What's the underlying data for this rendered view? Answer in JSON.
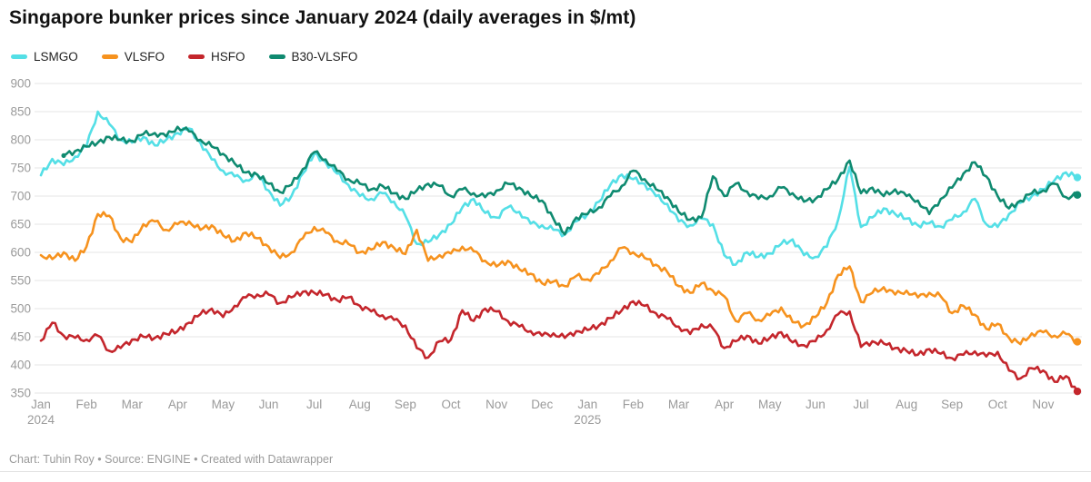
{
  "title": "Singapore bunker prices since January 2024 (daily averages in $/mt)",
  "footer": "Chart: Tuhin Roy • Source: ENGINE • Created with Datawrapper",
  "colors": {
    "lsmgo": "#54dfe6",
    "vlsfo": "#f6921e",
    "hsfo": "#c4262c",
    "b30_vlsfo": "#0f8a70",
    "grid": "#e4e4e4",
    "axis_text": "#9a9a9a",
    "title_text": "#111111"
  },
  "legend": [
    {
      "label": "LSMGO",
      "color": "#54dfe6"
    },
    {
      "label": "VLSFO",
      "color": "#f6921e"
    },
    {
      "label": "HSFO",
      "color": "#c4262c"
    },
    {
      "label": "B30-VLSFO",
      "color": "#0f8a70"
    }
  ],
  "chart_data": {
    "type": "line",
    "title": "Singapore bunker prices since January 2024 (daily averages in $/mt)",
    "ylabel": "$/mt",
    "xlabel": "",
    "ylim": [
      350,
      900
    ],
    "y_ticks": [
      900,
      850,
      800,
      750,
      700,
      650,
      600,
      550,
      500,
      450,
      400,
      350
    ],
    "grid": "horizontal",
    "legend_position": "top-left",
    "points_per_month": 4,
    "x_months": [
      {
        "label": "Jan",
        "year": "2024"
      },
      {
        "label": "Feb"
      },
      {
        "label": "Mar"
      },
      {
        "label": "Apr"
      },
      {
        "label": "May"
      },
      {
        "label": "Jun"
      },
      {
        "label": "Jul"
      },
      {
        "label": "Aug"
      },
      {
        "label": "Sep"
      },
      {
        "label": "Oct"
      },
      {
        "label": "Nov"
      },
      {
        "label": "Dec"
      },
      {
        "label": "Jan",
        "year": "2025"
      },
      {
        "label": "Feb"
      },
      {
        "label": "Mar"
      },
      {
        "label": "Apr"
      },
      {
        "label": "May"
      },
      {
        "label": "Jun"
      },
      {
        "label": "Jul"
      },
      {
        "label": "Aug"
      },
      {
        "label": "Sep"
      },
      {
        "label": "Oct"
      },
      {
        "label": "Nov"
      }
    ],
    "series": [
      {
        "name": "LSMGO",
        "color": "#54dfe6",
        "values": [
          737,
          766,
          755,
          770,
          788,
          850,
          828,
          800,
          795,
          805,
          790,
          800,
          812,
          820,
          795,
          765,
          745,
          735,
          728,
          738,
          710,
          683,
          700,
          740,
          775,
          760,
          740,
          720,
          700,
          695,
          705,
          690,
          665,
          615,
          618,
          632,
          650,
          680,
          695,
          670,
          662,
          680,
          672,
          651,
          648,
          640,
          632,
          655,
          668,
          690,
          720,
          738,
          730,
          722,
          700,
          686,
          655,
          648,
          660,
          650,
          595,
          578,
          600,
          592,
          598,
          615,
          623,
          595,
          592,
          610,
          658,
          752,
          645,
          662,
          678,
          668,
          660,
          648,
          652,
          646,
          658,
          672,
          695,
          650,
          645,
          668,
          688,
          700,
          712,
          728,
          742,
          733
        ]
      },
      {
        "name": "VLSFO",
        "color": "#f6921e",
        "values": [
          595,
          588,
          600,
          585,
          610,
          668,
          665,
          625,
          618,
          650,
          655,
          640,
          650,
          655,
          640,
          648,
          630,
          620,
          635,
          625,
          610,
          590,
          600,
          625,
          645,
          635,
          620,
          615,
          600,
          605,
          618,
          608,
          597,
          640,
          585,
          595,
          598,
          610,
          602,
          585,
          575,
          585,
          570,
          562,
          545,
          548,
          540,
          558,
          552,
          562,
          585,
          608,
          600,
          590,
          578,
          565,
          540,
          528,
          545,
          532,
          522,
          478,
          492,
          480,
          488,
          502,
          476,
          470,
          485,
          510,
          560,
          575,
          512,
          528,
          538,
          525,
          532,
          520,
          528,
          522,
          492,
          505,
          489,
          464,
          473,
          448,
          437,
          456,
          458,
          452,
          455,
          441
        ]
      },
      {
        "name": "HSFO",
        "color": "#c4262c",
        "values": [
          443,
          475,
          452,
          448,
          445,
          452,
          425,
          430,
          445,
          450,
          448,
          455,
          460,
          475,
          490,
          500,
          485,
          505,
          520,
          525,
          525,
          510,
          520,
          530,
          528,
          525,
          515,
          520,
          505,
          495,
          488,
          480,
          470,
          430,
          413,
          442,
          445,
          497,
          478,
          500,
          495,
          478,
          468,
          460,
          452,
          456,
          448,
          460,
          462,
          470,
          483,
          497,
          513,
          505,
          492,
          482,
          468,
          455,
          472,
          465,
          430,
          442,
          452,
          438,
          448,
          458,
          440,
          435,
          442,
          462,
          490,
          495,
          432,
          442,
          438,
          430,
          425,
          418,
          428,
          420,
          412,
          418,
          424,
          415,
          423,
          390,
          376,
          394,
          390,
          370,
          380,
          353
        ]
      },
      {
        "name": "B30-VLSFO",
        "color": "#0f8a70",
        "values": [
          null,
          null,
          772,
          780,
          788,
          795,
          805,
          800,
          798,
          810,
          812,
          806,
          823,
          815,
          800,
          788,
          775,
          758,
          742,
          738,
          722,
          707,
          720,
          748,
          778,
          765,
          745,
          730,
          722,
          712,
          718,
          705,
          695,
          710,
          722,
          718,
          700,
          712,
          705,
          698,
          710,
          722,
          715,
          700,
          692,
          660,
          632,
          662,
          668,
          680,
          700,
          718,
          745,
          730,
          712,
          698,
          672,
          658,
          662,
          735,
          700,
          722,
          708,
          695,
          700,
          715,
          705,
          690,
          695,
          712,
          730,
          763,
          705,
          715,
          700,
          712,
          700,
          692,
          668,
          695,
          715,
          740,
          760,
          735,
          700,
          678,
          692,
          705,
          710,
          722,
          698,
          702
        ]
      }
    ]
  }
}
